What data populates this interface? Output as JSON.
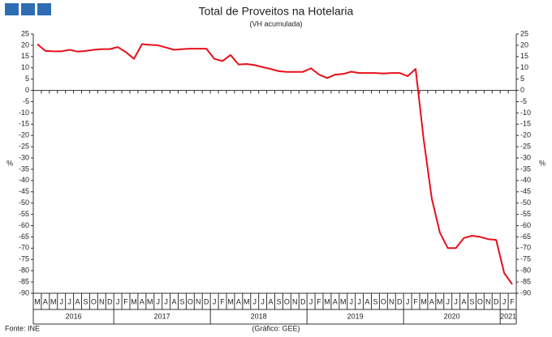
{
  "chart_data": {
    "type": "line",
    "title": "Total de Proveitos na Hotelaria",
    "subtitle": "(VH acumulada)",
    "y_label": "%",
    "y2_label": "%",
    "source": "Fonte: INE",
    "credit": "(Gráfico: GEE)",
    "categories": [
      "M",
      "A",
      "M",
      "J",
      "J",
      "A",
      "S",
      "O",
      "N",
      "D",
      "J",
      "F",
      "M",
      "A",
      "M",
      "J",
      "J",
      "A",
      "S",
      "O",
      "N",
      "D",
      "J",
      "F",
      "M",
      "A",
      "M",
      "J",
      "J",
      "A",
      "S",
      "O",
      "N",
      "D",
      "J",
      "F",
      "M",
      "A",
      "M",
      "J",
      "J",
      "A",
      "S",
      "O",
      "N",
      "D",
      "J",
      "F",
      "M",
      "A",
      "M",
      "J",
      "J",
      "A",
      "S",
      "O",
      "N",
      "D",
      "J",
      "F"
    ],
    "years": [
      "2016",
      null,
      null,
      null,
      null,
      null,
      null,
      null,
      null,
      null,
      "2017",
      null,
      null,
      null,
      null,
      null,
      null,
      null,
      null,
      null,
      null,
      null,
      "2018",
      null,
      null,
      null,
      null,
      null,
      null,
      null,
      null,
      null,
      null,
      null,
      "2019",
      null,
      null,
      null,
      null,
      null,
      null,
      null,
      null,
      null,
      null,
      null,
      "2020",
      null,
      null,
      null,
      null,
      null,
      null,
      null,
      null,
      null,
      null,
      null,
      "2021",
      null
    ],
    "series": [
      {
        "color": "#e8101a",
        "values": [
          20.5,
          17.5,
          17.3,
          17.3,
          18,
          17.2,
          17.5,
          18,
          18.3,
          18.3,
          19.2,
          17,
          14,
          20.5,
          20.2,
          20,
          19,
          18,
          18.3,
          18.5,
          18.5,
          18.5,
          14,
          13,
          15.7,
          11.5,
          11.7,
          11.2,
          10.3,
          9.5,
          8.5,
          8.2,
          8.2,
          8.2,
          9.8,
          7,
          5.5,
          7,
          7.3,
          8.3,
          7.7,
          7.7,
          7.7,
          7.5,
          7.7,
          7.7,
          6.3,
          9.5,
          -22,
          -48,
          -63,
          -70,
          -70,
          -65.5,
          -64.5,
          -65,
          -66,
          -66.3,
          -81,
          -86
        ]
      }
    ],
    "ylim": [
      -90,
      25
    ],
    "yticks": [
      25,
      20,
      15,
      10,
      5,
      0,
      -5,
      -10,
      -15,
      -20,
      -25,
      -30,
      -35,
      -40,
      -45,
      -50,
      -55,
      -60,
      -65,
      -70,
      -75,
      -80,
      -85,
      -90
    ]
  }
}
